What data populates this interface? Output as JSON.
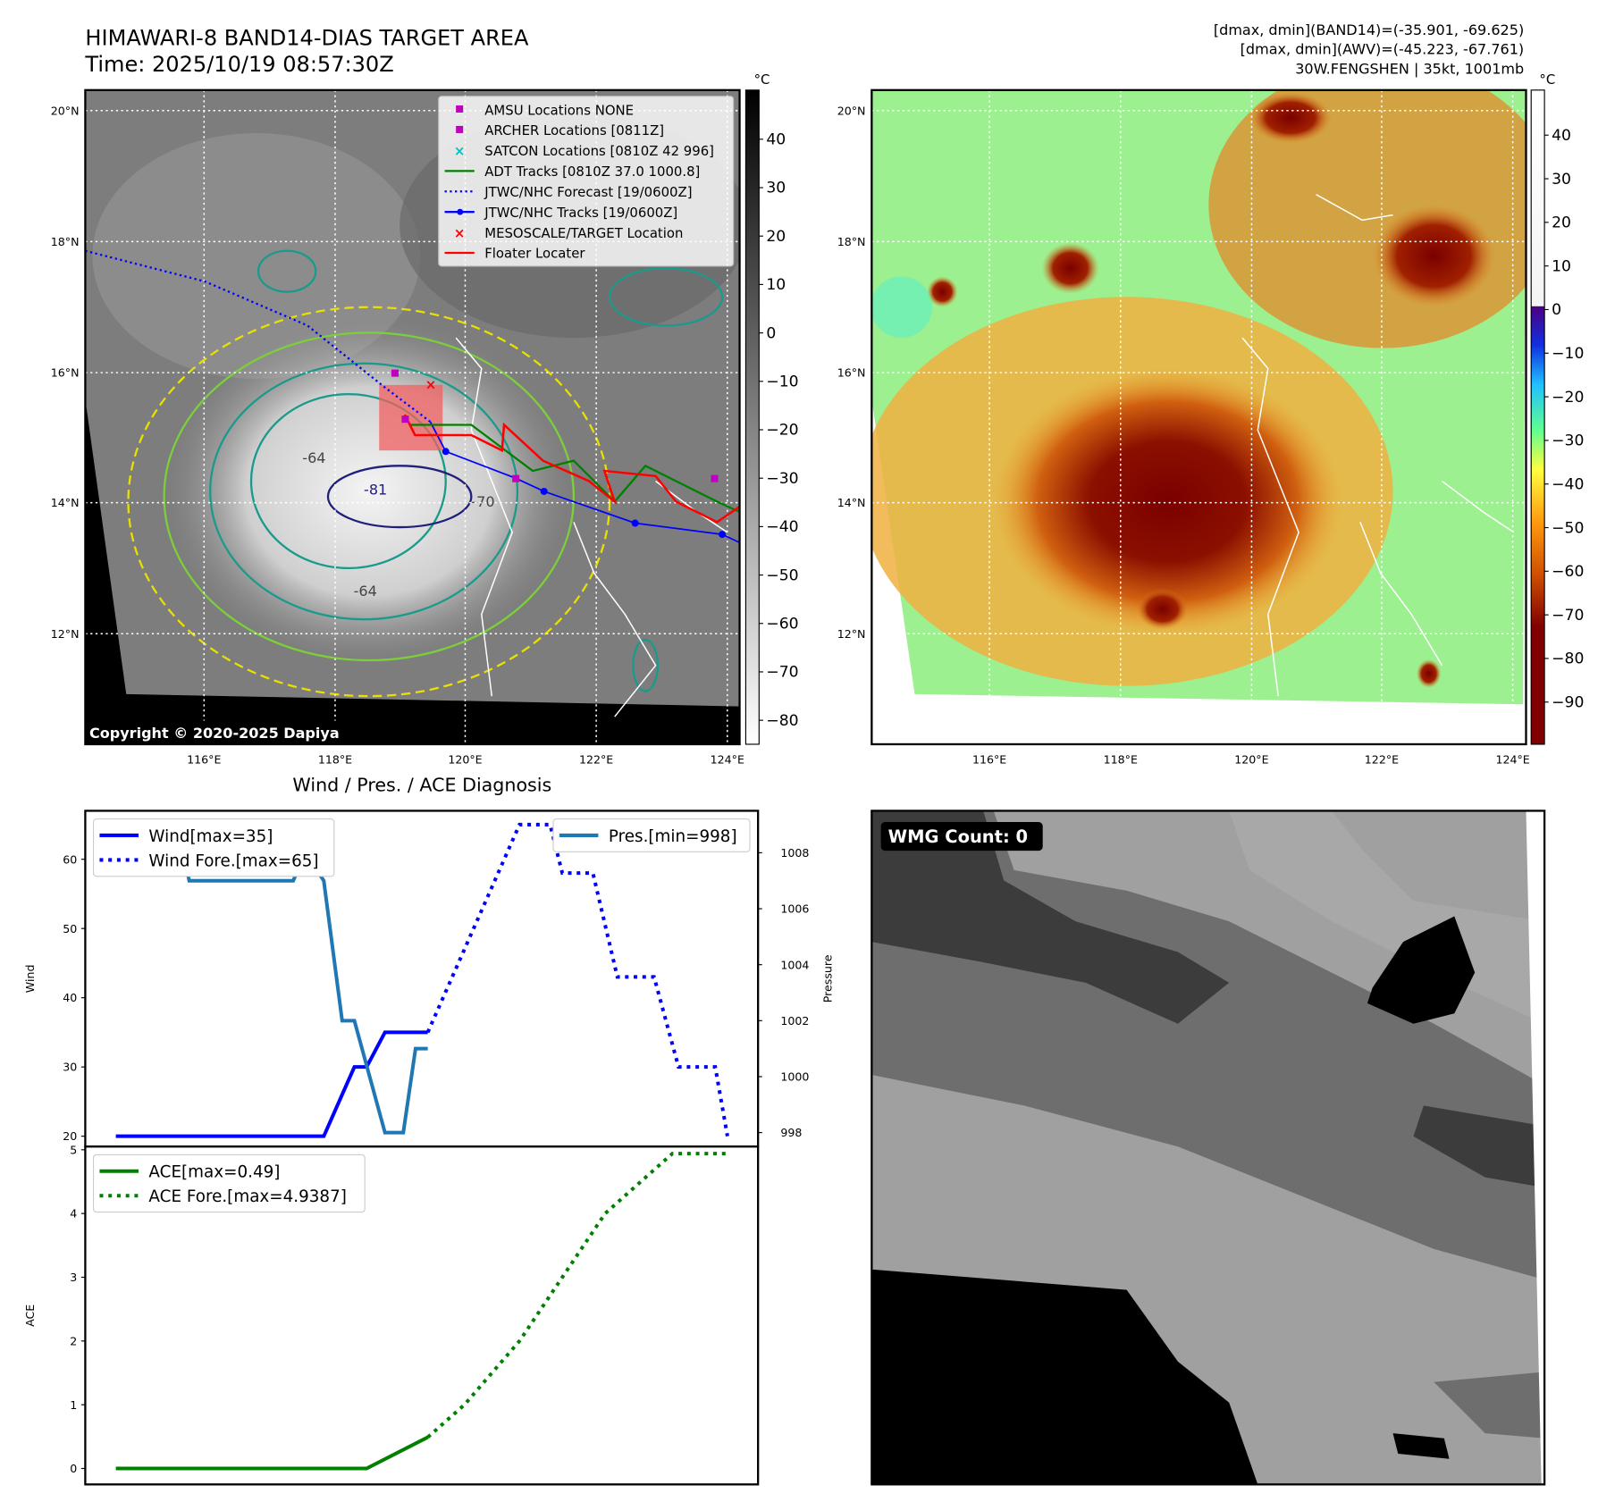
{
  "header": {
    "title_line1": "HIMAWARI-8 BAND14-DIAS TARGET AREA",
    "title_line2": "Time: 2025/10/19 08:57:30Z",
    "info_line1": "[dmax, dmin](BAND14)=(-35.901, -69.625)",
    "info_line2": "[dmax, dmin](AWV)=(-45.223, -67.761)",
    "info_line3": "30W.FENGSHEN | 35kt, 1001mb"
  },
  "ir_map": {
    "lat_labels": [
      "20°N",
      "18°N",
      "16°N",
      "14°N",
      "12°N"
    ],
    "lon_labels": [
      "116°E",
      "118°E",
      "120°E",
      "122°E",
      "124°E"
    ],
    "copyright": "Copyright © 2020-2025 Dapiya",
    "contour_labels": [
      "-64",
      "-81",
      "-64",
      "-70"
    ],
    "legend": [
      {
        "label": "AMSU Locations NONE",
        "color": "#c000c0",
        "marker": "square"
      },
      {
        "label": "ARCHER Locations [0811Z]",
        "color": "#c000c0",
        "marker": "square"
      },
      {
        "label": "SATCON Locations [0810Z 42 996]",
        "color": "#00c0c0",
        "marker": "x"
      },
      {
        "label": "ADT Tracks [0810Z 37.0 1000.8]",
        "color": "#008000",
        "marker": "line"
      },
      {
        "label": "JTWC/NHC Forecast [19/0600Z]",
        "color": "#0000ff",
        "marker": "dotted"
      },
      {
        "label": "JTWC/NHC Tracks [19/0600Z]",
        "color": "#0000ff",
        "marker": "line-dot"
      },
      {
        "label": "MESOSCALE/TARGET Location",
        "color": "#ff0000",
        "marker": "x"
      },
      {
        "label": "Floater Locater",
        "color": "#ff0000",
        "marker": "line"
      }
    ],
    "colorbar": {
      "unit": "°C",
      "ticks": [
        "40",
        "30",
        "20",
        "10",
        "0",
        "−10",
        "−20",
        "−30",
        "−40",
        "−50",
        "−60",
        "−70",
        "−80"
      ]
    }
  },
  "awv_map": {
    "lat_labels": [
      "20°N",
      "18°N",
      "16°N",
      "14°N",
      "12°N"
    ],
    "lon_labels": [
      "116°E",
      "118°E",
      "120°E",
      "122°E",
      "124°E"
    ],
    "colorbar": {
      "unit": "°C",
      "ticks": [
        "40",
        "30",
        "20",
        "10",
        "0",
        "−10",
        "−20",
        "−30",
        "−40",
        "−50",
        "−60",
        "−70",
        "−80",
        "−90"
      ]
    }
  },
  "wmg": {
    "label": "WMG Count: 0"
  },
  "chart_data": [
    {
      "type": "line",
      "title": "Wind / Pres. / ACE Diagnosis",
      "ylabel": "Wind",
      "y2label": "Pressure",
      "ylim": [
        18.5,
        67
      ],
      "y2lim": [
        997.5,
        1009.5
      ],
      "xlim": [
        -5,
        105
      ],
      "yticks": [
        "20",
        "30",
        "40",
        "50",
        "60"
      ],
      "y2ticks": [
        "998",
        "1000",
        "1002",
        "1004",
        "1006",
        "1008"
      ],
      "series": [
        {
          "name": "Wind[max=35]",
          "axis": "left",
          "style": "solid",
          "color": "#0000ff",
          "points": [
            [
              0,
              20
            ],
            [
              34,
              20
            ],
            [
              39,
              30
            ],
            [
              41,
              30
            ],
            [
              44,
              35
            ],
            [
              51,
              35
            ]
          ]
        },
        {
          "name": "Wind Fore.[max=65]",
          "axis": "left",
          "style": "dotted",
          "color": "#0000ff",
          "points": [
            [
              51,
              35
            ],
            [
              66,
              65
            ],
            [
              71,
              65
            ],
            [
              73,
              58
            ],
            [
              78,
              58
            ],
            [
              82,
              43
            ],
            [
              88,
              43
            ],
            [
              92,
              30
            ],
            [
              98,
              30
            ],
            [
              100,
              20
            ]
          ]
        },
        {
          "name": "Pres.[min=998]",
          "axis": "right",
          "style": "solid",
          "color": "#1f77b4",
          "points": [
            [
              0,
              1009
            ],
            [
              10,
              1009
            ],
            [
              12,
              1007
            ],
            [
              29,
              1007
            ],
            [
              31,
              1008
            ],
            [
              34,
              1007
            ],
            [
              37,
              1002
            ],
            [
              39,
              1002
            ],
            [
              44,
              998
            ],
            [
              47,
              998
            ],
            [
              49,
              1001
            ],
            [
              51,
              1001
            ]
          ]
        }
      ]
    },
    {
      "type": "line",
      "ylabel": "ACE",
      "ylim": [
        -0.25,
        5.05
      ],
      "xlim": [
        -5,
        105
      ],
      "yticks": [
        "0",
        "1",
        "2",
        "3",
        "4",
        "5"
      ],
      "series": [
        {
          "name": "ACE[max=0.49]",
          "style": "solid",
          "color": "#008000",
          "points": [
            [
              0,
              0
            ],
            [
              41,
              0
            ],
            [
              51,
              0.49
            ]
          ]
        },
        {
          "name": "ACE Fore.[max=4.9387]",
          "style": "dotted",
          "color": "#008000",
          "points": [
            [
              51,
              0.49
            ],
            [
              57,
              1
            ],
            [
              66,
              2
            ],
            [
              73,
              3
            ],
            [
              80,
              4
            ],
            [
              87,
              4.6
            ],
            [
              91,
              4.94
            ],
            [
              100,
              4.94
            ]
          ]
        }
      ]
    }
  ]
}
